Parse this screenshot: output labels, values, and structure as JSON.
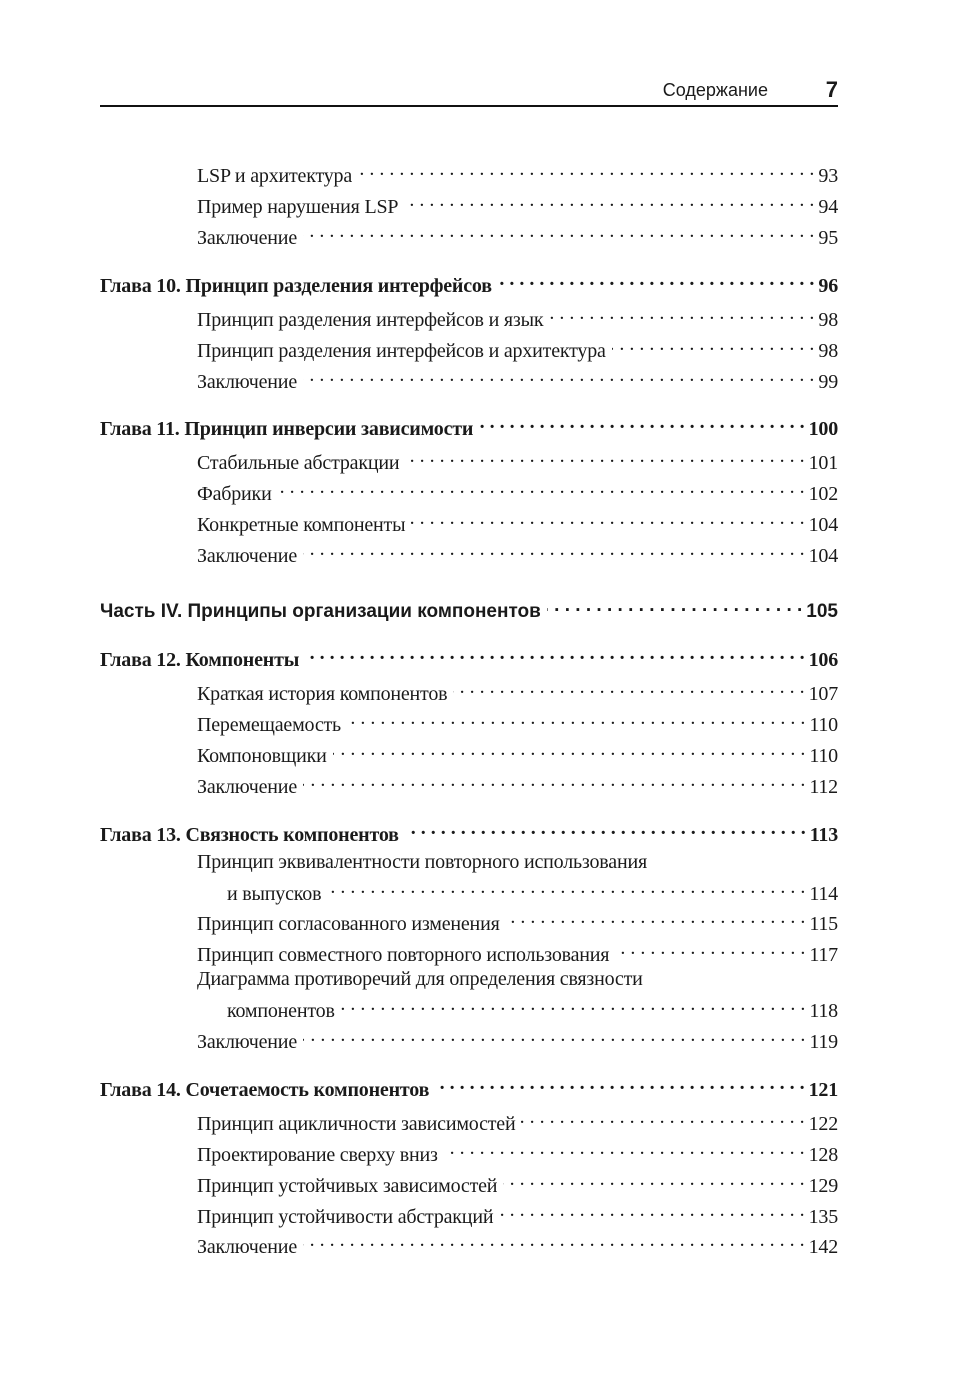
{
  "header": {
    "title": "Содержание",
    "page_number": "7"
  },
  "entries": [
    {
      "type": "section",
      "text": "LSP и архитектура",
      "page": "93"
    },
    {
      "type": "section",
      "text": "Пример нарушения LSP",
      "page": "94"
    },
    {
      "type": "section",
      "text": "Заключение",
      "page": "95"
    },
    {
      "type": "chapter",
      "text": "Глава 10. Принцип разделения интерфейсов",
      "page": "96"
    },
    {
      "type": "section",
      "text": "Принцип разделения интерфейсов и язык",
      "page": "98"
    },
    {
      "type": "section",
      "text": "Принцип разделения интерфейсов и архитектура",
      "page": "98"
    },
    {
      "type": "section",
      "text": "Заключение",
      "page": "99"
    },
    {
      "type": "chapter",
      "text": "Глава 11. Принцип инверсии зависимости",
      "page": "100"
    },
    {
      "type": "section",
      "text": "Стабильные абстракции",
      "page": "101"
    },
    {
      "type": "section",
      "text": "Фабрики",
      "page": "102"
    },
    {
      "type": "section",
      "text": "Конкретные компоненты",
      "page": "104"
    },
    {
      "type": "section",
      "text": "Заключение",
      "page": "104"
    },
    {
      "type": "part",
      "text": "Часть IV. Принципы организации компонентов",
      "page": "105"
    },
    {
      "type": "chapter",
      "text": "Глава 12. Компоненты",
      "page": "106"
    },
    {
      "type": "section",
      "text": "Краткая история компонентов",
      "page": "107"
    },
    {
      "type": "section",
      "text": "Перемещаемость",
      "page": "110"
    },
    {
      "type": "section",
      "text": "Компоновщики",
      "page": "110"
    },
    {
      "type": "section",
      "text": "Заключение",
      "page": "112"
    },
    {
      "type": "chapter",
      "text": "Глава 13. Связность компонентов",
      "page": "113"
    },
    {
      "type": "section",
      "first_line": "Принцип эквивалентности повторного использования",
      "text": "и выпусков",
      "page": "114"
    },
    {
      "type": "section",
      "text": "Принцип согласованного изменения",
      "page": "115"
    },
    {
      "type": "section",
      "text": "Принцип совместного повторного использования",
      "page": "117"
    },
    {
      "type": "section",
      "first_line": "Диаграмма противоречий для определения связности",
      "text": "компонентов",
      "page": "118"
    },
    {
      "type": "section",
      "text": "Заключение",
      "page": "119"
    },
    {
      "type": "chapter",
      "text": "Глава 14. Сочетаемость компонентов",
      "page": "121"
    },
    {
      "type": "section",
      "text": "Принцип ацикличности зависимостей",
      "page": "122"
    },
    {
      "type": "section",
      "text": "Проектирование сверху вниз",
      "page": "128"
    },
    {
      "type": "section",
      "text": "Принцип устойчивых зависимостей",
      "page": "129"
    },
    {
      "type": "section",
      "text": "Принцип устойчивости абстракций",
      "page": "135"
    },
    {
      "type": "section",
      "text": "Заключение",
      "page": "142"
    }
  ]
}
